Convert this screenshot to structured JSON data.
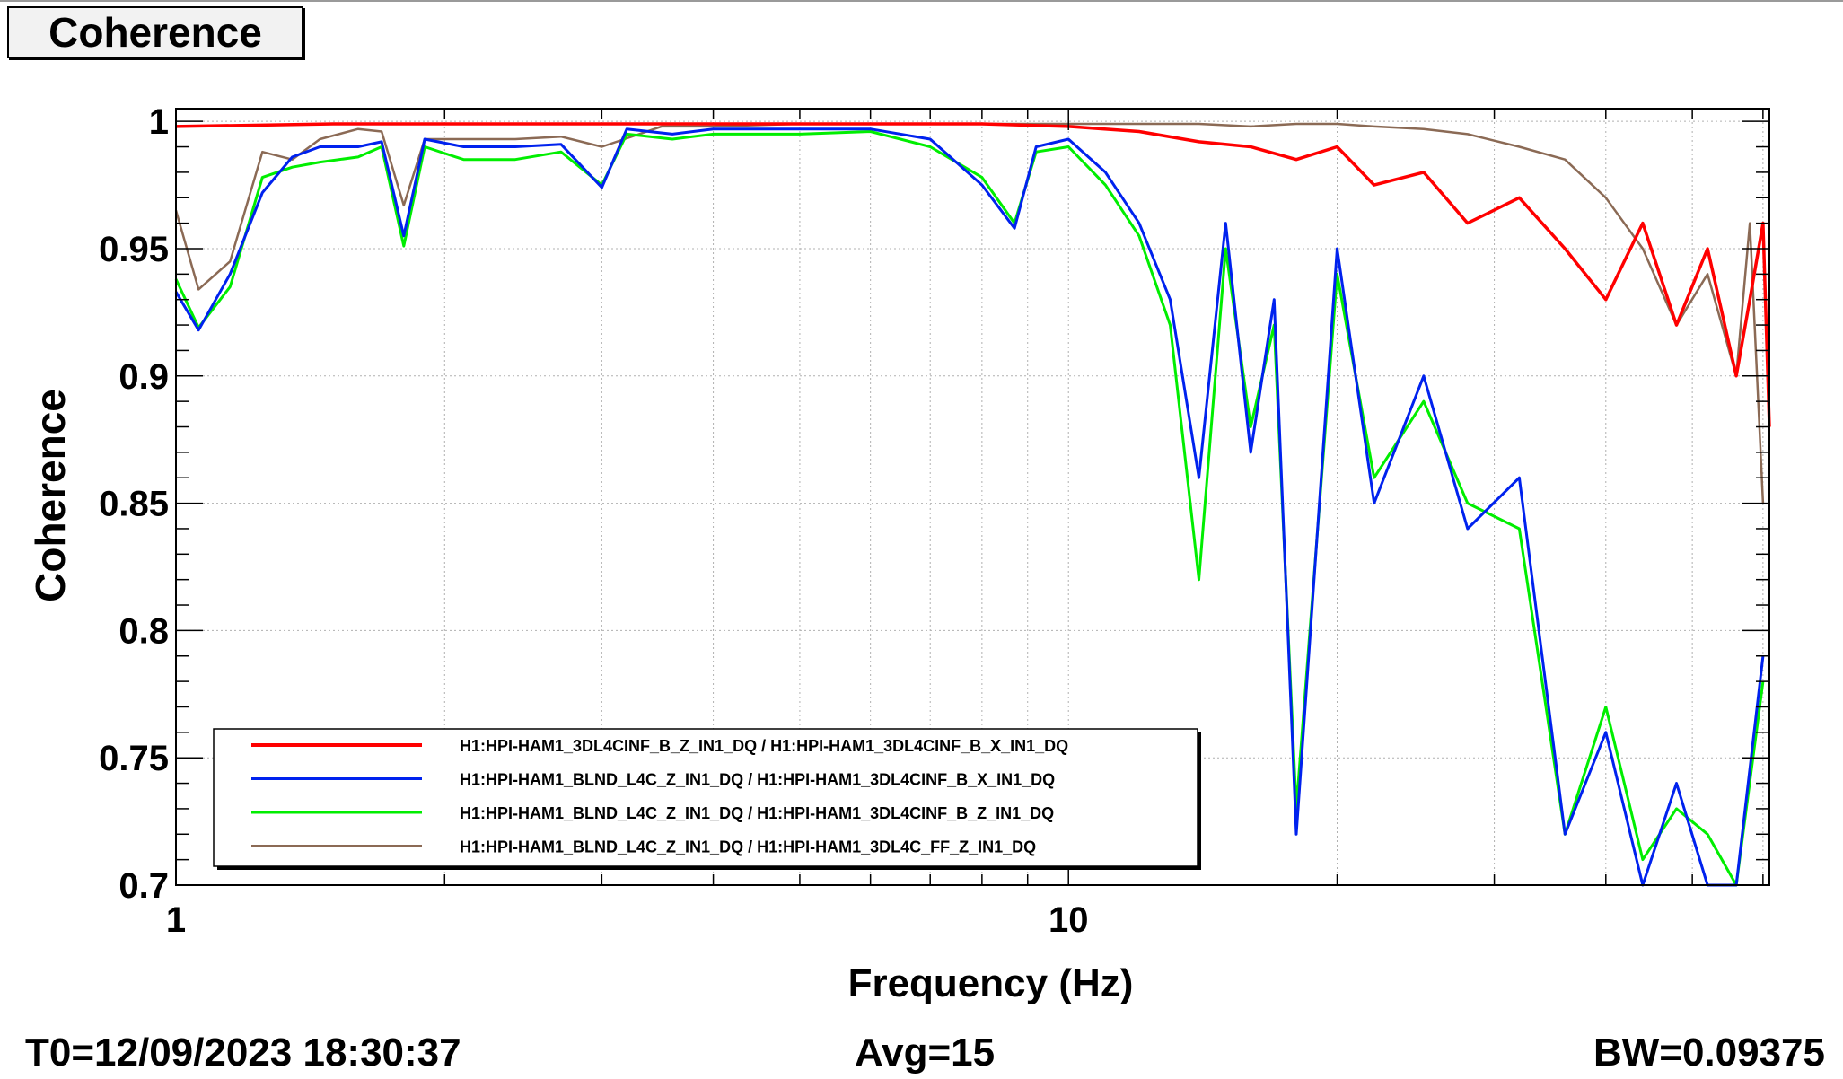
{
  "title_box": {
    "label": "Coherence"
  },
  "footer": {
    "t0": "T0=12/09/2023 18:30:37",
    "avg": "Avg=15",
    "bw": "BW=0.09375"
  },
  "chart_data": {
    "type": "line",
    "title": "",
    "xlabel": "Frequency (Hz)",
    "ylabel": "Coherence",
    "x_scale": "log",
    "xlim": [
      1,
      61
    ],
    "ylim": [
      0.7,
      1.005
    ],
    "grid": true,
    "legend_position": "bottom-left",
    "x_ticks": [
      {
        "value": 1,
        "label": "1"
      },
      {
        "value": 10,
        "label": "10"
      }
    ],
    "y_ticks": [
      {
        "value": 0.7,
        "label": "0.7"
      },
      {
        "value": 0.75,
        "label": "0.75"
      },
      {
        "value": 0.8,
        "label": "0.8"
      },
      {
        "value": 0.85,
        "label": "0.85"
      },
      {
        "value": 0.9,
        "label": "0.9"
      },
      {
        "value": 0.95,
        "label": "0.95"
      },
      {
        "value": 1.0,
        "label": "1"
      }
    ],
    "series": [
      {
        "name": "H1:HPI-HAM1_3DL4CINF_B_Z_IN1_DQ / H1:HPI-HAM1_3DL4CINF_B_X_IN1_DQ",
        "color": "#ff0000",
        "x": [
          1.0,
          1.5,
          2.0,
          3.0,
          5.0,
          8.0,
          10.0,
          12.0,
          14.0,
          16.0,
          18.0,
          20.0,
          22.0,
          25.0,
          28.0,
          32.0,
          36.0,
          40.0,
          44.0,
          48.0,
          52.0,
          56.0,
          58.0,
          60.0,
          61.0
        ],
        "y": [
          0.998,
          0.999,
          0.999,
          0.999,
          0.999,
          0.999,
          0.998,
          0.996,
          0.992,
          0.99,
          0.985,
          0.99,
          0.975,
          0.98,
          0.96,
          0.97,
          0.95,
          0.93,
          0.96,
          0.92,
          0.95,
          0.9,
          0.93,
          0.96,
          0.88
        ]
      },
      {
        "name": "H1:HPI-HAM1_BLND_L4C_Z_IN1_DQ / H1:HPI-HAM1_3DL4CINF_B_X_IN1_DQ",
        "color": "#0022ee",
        "x": [
          1.0,
          1.06,
          1.15,
          1.25,
          1.35,
          1.45,
          1.6,
          1.7,
          1.8,
          1.9,
          2.1,
          2.4,
          2.7,
          3.0,
          3.2,
          3.6,
          4.0,
          5.0,
          6.0,
          7.0,
          8.0,
          8.7,
          9.2,
          10.0,
          11.0,
          12.0,
          13.0,
          14.0,
          15.0,
          16.0,
          17.0,
          18.0,
          20.0,
          22.0,
          25.0,
          28.0,
          32.0,
          36.0,
          40.0,
          44.0,
          48.0,
          52.0,
          56.0,
          60.0
        ],
        "y": [
          0.933,
          0.918,
          0.94,
          0.972,
          0.986,
          0.99,
          0.99,
          0.992,
          0.955,
          0.993,
          0.99,
          0.99,
          0.991,
          0.974,
          0.997,
          0.995,
          0.997,
          0.997,
          0.997,
          0.993,
          0.975,
          0.958,
          0.99,
          0.993,
          0.98,
          0.96,
          0.93,
          0.86,
          0.96,
          0.87,
          0.93,
          0.72,
          0.95,
          0.85,
          0.9,
          0.84,
          0.86,
          0.72,
          0.76,
          0.7,
          0.74,
          0.7,
          0.7,
          0.79
        ]
      },
      {
        "name": "H1:HPI-HAM1_BLND_L4C_Z_IN1_DQ / H1:HPI-HAM1_3DL4CINF_B_Z_IN1_DQ",
        "color": "#00ee00",
        "x": [
          1.0,
          1.06,
          1.15,
          1.25,
          1.35,
          1.45,
          1.6,
          1.7,
          1.8,
          1.9,
          2.1,
          2.4,
          2.7,
          3.0,
          3.2,
          3.6,
          4.0,
          5.0,
          6.0,
          7.0,
          8.0,
          8.7,
          9.2,
          10.0,
          11.0,
          12.0,
          13.0,
          14.0,
          15.0,
          16.0,
          17.0,
          18.0,
          20.0,
          22.0,
          25.0,
          28.0,
          32.0,
          36.0,
          40.0,
          44.0,
          48.0,
          52.0,
          56.0,
          60.0
        ],
        "y": [
          0.938,
          0.919,
          0.935,
          0.978,
          0.982,
          0.984,
          0.986,
          0.99,
          0.951,
          0.99,
          0.985,
          0.985,
          0.988,
          0.975,
          0.995,
          0.993,
          0.995,
          0.995,
          0.996,
          0.99,
          0.978,
          0.96,
          0.988,
          0.99,
          0.975,
          0.955,
          0.92,
          0.82,
          0.95,
          0.88,
          0.92,
          0.73,
          0.94,
          0.86,
          0.89,
          0.85,
          0.84,
          0.72,
          0.77,
          0.71,
          0.73,
          0.72,
          0.7,
          0.78
        ]
      },
      {
        "name": "H1:HPI-HAM1_BLND_L4C_Z_IN1_DQ / H1:HPI-HAM1_3DL4C_FF_Z_IN1_DQ",
        "color": "#8b6a55",
        "x": [
          1.0,
          1.06,
          1.15,
          1.25,
          1.35,
          1.45,
          1.6,
          1.7,
          1.8,
          1.9,
          2.1,
          2.4,
          2.7,
          3.0,
          3.5,
          4.0,
          5.0,
          6.0,
          8.0,
          10.0,
          12.0,
          14.0,
          16.0,
          18.0,
          20.0,
          22.0,
          25.0,
          28.0,
          32.0,
          36.0,
          40.0,
          44.0,
          48.0,
          52.0,
          56.0,
          58.0,
          60.0
        ],
        "y": [
          0.965,
          0.934,
          0.945,
          0.988,
          0.985,
          0.993,
          0.997,
          0.996,
          0.967,
          0.993,
          0.993,
          0.993,
          0.994,
          0.99,
          0.998,
          0.998,
          0.999,
          0.999,
          0.999,
          0.999,
          0.999,
          0.999,
          0.998,
          0.999,
          0.999,
          0.998,
          0.997,
          0.995,
          0.99,
          0.985,
          0.97,
          0.95,
          0.92,
          0.94,
          0.9,
          0.96,
          0.85
        ]
      }
    ]
  }
}
